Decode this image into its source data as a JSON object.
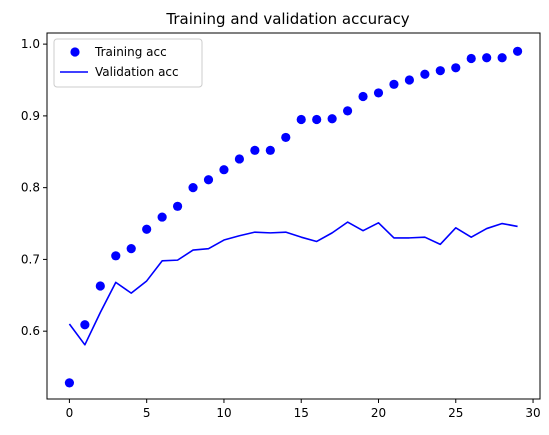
{
  "chart_data": {
    "type": "line",
    "title": "Training and validation accuracy",
    "xlabel": "",
    "ylabel": "",
    "xlim": [
      -1.45,
      30.45
    ],
    "ylim": [
      0.5055,
      1.0155
    ],
    "xticks": [
      0,
      5,
      10,
      15,
      20,
      25,
      30
    ],
    "yticks": [
      0.6,
      0.7,
      0.8,
      0.9,
      1.0
    ],
    "xtick_labels": [
      "0",
      "5",
      "10",
      "15",
      "20",
      "25",
      "30"
    ],
    "ytick_labels": [
      "0.6",
      "0.7",
      "0.8",
      "0.9",
      "1.0"
    ],
    "grid": false,
    "legend_position": "upper-left",
    "x": [
      0,
      1,
      2,
      3,
      4,
      5,
      6,
      7,
      8,
      9,
      10,
      11,
      12,
      13,
      14,
      15,
      16,
      17,
      18,
      19,
      20,
      21,
      22,
      23,
      24,
      25,
      26,
      27,
      28,
      29
    ],
    "series": [
      {
        "name": "Training acc",
        "style": "markers",
        "color": "#0000ff",
        "values": [
          0.528,
          0.609,
          0.663,
          0.705,
          0.715,
          0.742,
          0.759,
          0.774,
          0.8,
          0.811,
          0.825,
          0.84,
          0.852,
          0.852,
          0.87,
          0.895,
          0.895,
          0.896,
          0.907,
          0.927,
          0.932,
          0.944,
          0.95,
          0.958,
          0.963,
          0.967,
          0.98,
          0.981,
          0.981,
          0.99
        ]
      },
      {
        "name": "Validation acc",
        "style": "line",
        "color": "#0000ff",
        "values": [
          0.61,
          0.581,
          0.626,
          0.668,
          0.653,
          0.67,
          0.698,
          0.699,
          0.713,
          0.715,
          0.727,
          0.733,
          0.738,
          0.737,
          0.738,
          0.731,
          0.725,
          0.737,
          0.752,
          0.74,
          0.751,
          0.73,
          0.73,
          0.731,
          0.721,
          0.744,
          0.731,
          0.743,
          0.75,
          0.746
        ]
      }
    ]
  }
}
